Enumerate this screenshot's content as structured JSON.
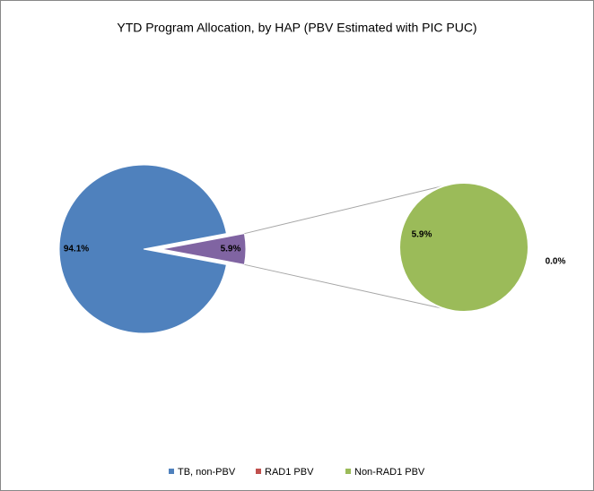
{
  "chart_data": {
    "type": "pie_of_pie",
    "title": "YTD Program Allocation, by HAP (PBV Estimated with PIC PUC)",
    "categories": [
      "TB, non-PBV",
      "RAD1 PBV",
      "Non-RAD1 PBV"
    ],
    "colors": [
      "#4f81bd",
      "#c0504d",
      "#9bbb59"
    ],
    "values": [
      94.1,
      0.0,
      5.9
    ],
    "value_labels": [
      "94.1%",
      "0.0%",
      "5.9%"
    ],
    "other_value": 5.9,
    "other_label": "5.9%",
    "other_color": "#8064a2",
    "legend": "bottom"
  }
}
